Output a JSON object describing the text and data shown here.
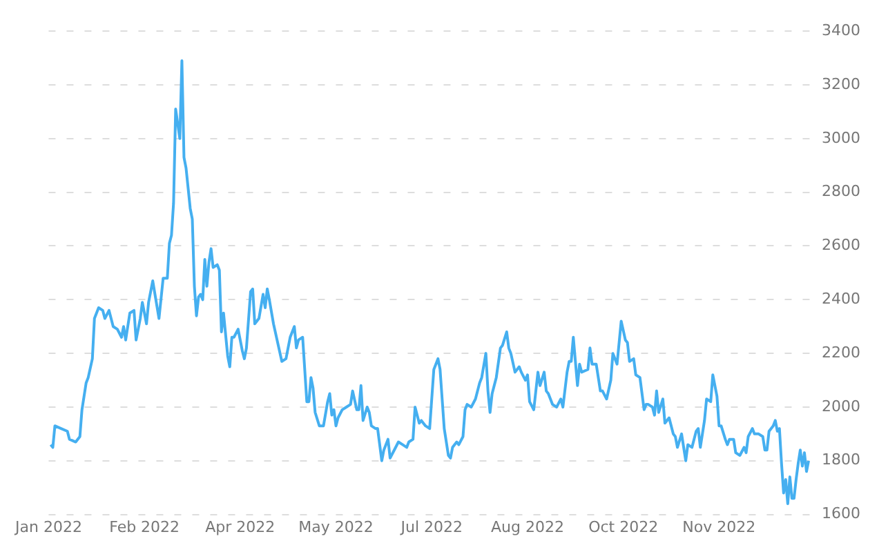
{
  "chart_data": {
    "type": "line",
    "xlim": [
      "2022-01-01",
      "2023-01-02"
    ],
    "xticks": [
      {
        "value": "2022-01-01",
        "label": "Jan 2022"
      },
      {
        "value": "2022-02-16",
        "label": "Feb 2022"
      },
      {
        "value": "2022-04-03",
        "label": "Apr 2022"
      },
      {
        "value": "2022-05-19",
        "label": "May 2022"
      },
      {
        "value": "2022-07-04",
        "label": "Jul 2022"
      },
      {
        "value": "2022-08-19",
        "label": "Aug 2022"
      },
      {
        "value": "2022-10-04",
        "label": "Oct 2022"
      },
      {
        "value": "2022-11-19",
        "label": "Nov 2022"
      }
    ],
    "ylim": [
      1600,
      3400
    ],
    "yticks": [
      1600,
      1800,
      2000,
      2200,
      2400,
      2600,
      2800,
      3000,
      3200,
      3400
    ],
    "grid": "y",
    "legend": false,
    "marker": "none",
    "line_style": "solid",
    "x": [
      "2022-01-02",
      "2022-01-03",
      "2022-01-04",
      "2022-01-07",
      "2022-01-10",
      "2022-01-11",
      "2022-01-14",
      "2022-01-16",
      "2022-01-17",
      "2022-01-19",
      "2022-01-20",
      "2022-01-22",
      "2022-01-23",
      "2022-01-25",
      "2022-01-27",
      "2022-01-28",
      "2022-01-30",
      "2022-02-01",
      "2022-02-03",
      "2022-02-05",
      "2022-02-06",
      "2022-02-07",
      "2022-02-09",
      "2022-02-11",
      "2022-02-12",
      "2022-02-14",
      "2022-02-15",
      "2022-02-17",
      "2022-02-18",
      "2022-02-20",
      "2022-02-23",
      "2022-02-25",
      "2022-02-27",
      "2022-02-28",
      "2022-03-01",
      "2022-03-02",
      "2022-03-03",
      "2022-03-05",
      "2022-03-06",
      "2022-03-07",
      "2022-03-08",
      "2022-03-10",
      "2022-03-11",
      "2022-03-12",
      "2022-03-13",
      "2022-03-14",
      "2022-03-15",
      "2022-03-16",
      "2022-03-17",
      "2022-03-18",
      "2022-03-19",
      "2022-03-20",
      "2022-03-21",
      "2022-03-23",
      "2022-03-24",
      "2022-03-25",
      "2022-03-26",
      "2022-03-28",
      "2022-03-29",
      "2022-03-30",
      "2022-03-31",
      "2022-04-02",
      "2022-04-04",
      "2022-04-05",
      "2022-04-06",
      "2022-04-08",
      "2022-04-09",
      "2022-04-10",
      "2022-04-12",
      "2022-04-14",
      "2022-04-15",
      "2022-04-16",
      "2022-04-17",
      "2022-04-19",
      "2022-04-23",
      "2022-04-25",
      "2022-04-27",
      "2022-04-29",
      "2022-04-30",
      "2022-05-01",
      "2022-05-03",
      "2022-05-05",
      "2022-05-06",
      "2022-05-07",
      "2022-05-08",
      "2022-05-09",
      "2022-05-11",
      "2022-05-13",
      "2022-05-15",
      "2022-05-16",
      "2022-05-17",
      "2022-05-18",
      "2022-05-19",
      "2022-05-20",
      "2022-05-22",
      "2022-05-24",
      "2022-05-26",
      "2022-05-27",
      "2022-05-29",
      "2022-05-30",
      "2022-05-31",
      "2022-06-01",
      "2022-06-03",
      "2022-06-04",
      "2022-06-05",
      "2022-06-07",
      "2022-06-08",
      "2022-06-10",
      "2022-06-11",
      "2022-06-13",
      "2022-06-14",
      "2022-06-16",
      "2022-06-18",
      "2022-06-20",
      "2022-06-22",
      "2022-06-23",
      "2022-06-25",
      "2022-06-26",
      "2022-06-28",
      "2022-06-29",
      "2022-07-01",
      "2022-07-03",
      "2022-07-05",
      "2022-07-07",
      "2022-07-08",
      "2022-07-09",
      "2022-07-10",
      "2022-07-12",
      "2022-07-13",
      "2022-07-14",
      "2022-07-16",
      "2022-07-17",
      "2022-07-19",
      "2022-07-20",
      "2022-07-21",
      "2022-07-23",
      "2022-07-25",
      "2022-07-27",
      "2022-07-28",
      "2022-07-30",
      "2022-07-31",
      "2022-08-01",
      "2022-08-02",
      "2022-08-04",
      "2022-08-06",
      "2022-08-07",
      "2022-08-09",
      "2022-08-10",
      "2022-08-11",
      "2022-08-13",
      "2022-08-15",
      "2022-08-16",
      "2022-08-18",
      "2022-08-19",
      "2022-08-20",
      "2022-08-22",
      "2022-08-24",
      "2022-08-25",
      "2022-08-27",
      "2022-08-28",
      "2022-08-29",
      "2022-08-31",
      "2022-09-02",
      "2022-09-04",
      "2022-09-05",
      "2022-09-07",
      "2022-09-08",
      "2022-09-09",
      "2022-09-10",
      "2022-09-12",
      "2022-09-13",
      "2022-09-14",
      "2022-09-17",
      "2022-09-18",
      "2022-09-19",
      "2022-09-21",
      "2022-09-23",
      "2022-09-24",
      "2022-09-26",
      "2022-09-28",
      "2022-09-29",
      "2022-10-01",
      "2022-10-03",
      "2022-10-05",
      "2022-10-06",
      "2022-10-07",
      "2022-10-09",
      "2022-10-10",
      "2022-10-12",
      "2022-10-14",
      "2022-10-15",
      "2022-10-16",
      "2022-10-18",
      "2022-10-19",
      "2022-10-20",
      "2022-10-21",
      "2022-10-23",
      "2022-10-24",
      "2022-10-26",
      "2022-10-28",
      "2022-10-29",
      "2022-10-30",
      "2022-11-01",
      "2022-11-02",
      "2022-11-03",
      "2022-11-04",
      "2022-11-06",
      "2022-11-08",
      "2022-11-09",
      "2022-11-10",
      "2022-11-12",
      "2022-11-13",
      "2022-11-15",
      "2022-11-16",
      "2022-11-17",
      "2022-11-18",
      "2022-11-19",
      "2022-11-20",
      "2022-11-22",
      "2022-11-23",
      "2022-11-24",
      "2022-11-26",
      "2022-11-27",
      "2022-11-29",
      "2022-12-01",
      "2022-12-02",
      "2022-12-03",
      "2022-12-05",
      "2022-12-06",
      "2022-12-08",
      "2022-12-10",
      "2022-12-11",
      "2022-12-12",
      "2022-12-13",
      "2022-12-15",
      "2022-12-16",
      "2022-12-17",
      "2022-12-18",
      "2022-12-19",
      "2022-12-20",
      "2022-12-21",
      "2022-12-22",
      "2022-12-23",
      "2022-12-24",
      "2022-12-25",
      "2022-12-26",
      "2022-12-27",
      "2022-12-28",
      "2022-12-29",
      "2022-12-30",
      "2022-12-31",
      "2023-01-01"
    ],
    "series": [
      {
        "color": "#45aff0",
        "values": [
          1860,
          1850,
          1930,
          1920,
          1910,
          1880,
          1870,
          1890,
          1990,
          2090,
          2110,
          2180,
          2330,
          2370,
          2360,
          2330,
          2360,
          2300,
          2290,
          2260,
          2300,
          2250,
          2350,
          2360,
          2250,
          2330,
          2390,
          2310,
          2390,
          2470,
          2330,
          2480,
          2480,
          2610,
          2640,
          2760,
          3110,
          3000,
          3290,
          2930,
          2890,
          2740,
          2700,
          2450,
          2340,
          2410,
          2420,
          2400,
          2550,
          2450,
          2540,
          2590,
          2520,
          2530,
          2510,
          2280,
          2350,
          2190,
          2150,
          2260,
          2260,
          2290,
          2210,
          2180,
          2220,
          2430,
          2440,
          2310,
          2330,
          2420,
          2370,
          2440,
          2400,
          2310,
          2170,
          2180,
          2260,
          2300,
          2220,
          2250,
          2260,
          2020,
          2020,
          2110,
          2070,
          1980,
          1930,
          1930,
          2020,
          2050,
          1970,
          1990,
          1930,
          1960,
          1990,
          2000,
          2010,
          2060,
          1990,
          1990,
          2080,
          1950,
          2000,
          1980,
          1930,
          1920,
          1920,
          1800,
          1840,
          1880,
          1810,
          1840,
          1870,
          1860,
          1850,
          1870,
          1880,
          2000,
          1940,
          1950,
          1930,
          1920,
          2140,
          2180,
          2140,
          2030,
          1920,
          1820,
          1810,
          1850,
          1870,
          1860,
          1890,
          1990,
          2010,
          2000,
          2030,
          2090,
          2110,
          2200,
          2060,
          1980,
          2050,
          2110,
          2220,
          2230,
          2280,
          2220,
          2200,
          2130,
          2150,
          2130,
          2100,
          2120,
          2020,
          1990,
          2130,
          2080,
          2130,
          2060,
          2050,
          2010,
          2000,
          2030,
          2000,
          2130,
          2170,
          2170,
          2260,
          2080,
          2160,
          2130,
          2140,
          2220,
          2160,
          2160,
          2060,
          2060,
          2030,
          2100,
          2200,
          2160,
          2320,
          2250,
          2240,
          2170,
          2180,
          2120,
          2110,
          1990,
          2010,
          2010,
          2000,
          1970,
          2060,
          1980,
          2030,
          1940,
          1960,
          1900,
          1890,
          1850,
          1900,
          1850,
          1800,
          1860,
          1850,
          1910,
          1920,
          1850,
          1950,
          2030,
          2020,
          2120,
          2080,
          2040,
          1930,
          1930,
          1880,
          1860,
          1880,
          1880,
          1830,
          1820,
          1850,
          1830,
          1890,
          1920,
          1900,
          1900,
          1890,
          1840,
          1840,
          1910,
          1930,
          1950,
          1910,
          1920,
          1790,
          1680,
          1730,
          1640,
          1740,
          1660,
          1660,
          1730,
          1790,
          1840,
          1780,
          1830,
          1760,
          1800
        ]
      }
    ]
  }
}
